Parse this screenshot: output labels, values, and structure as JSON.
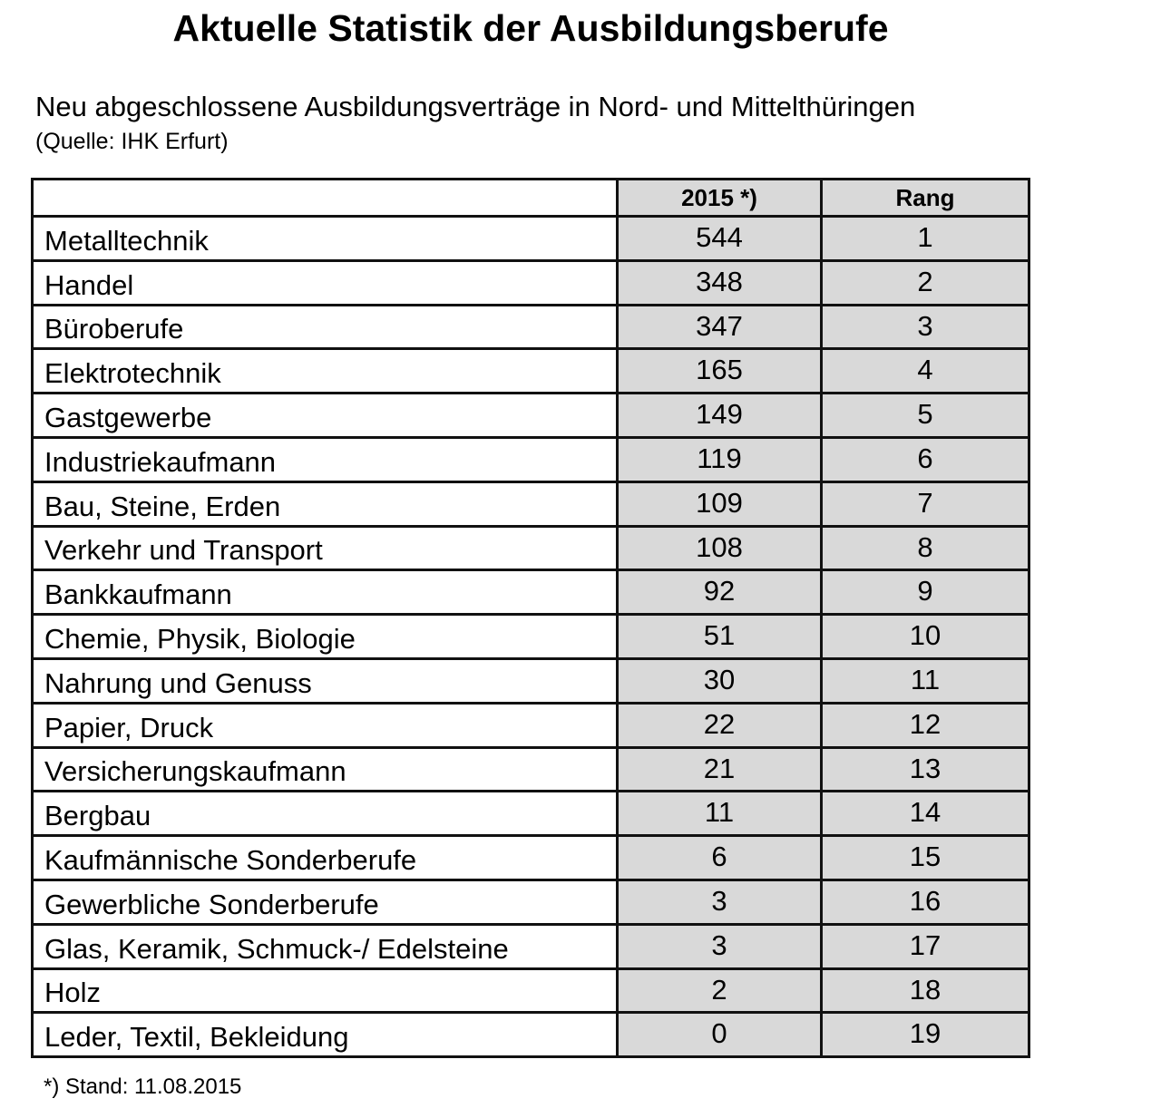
{
  "title": "Aktuelle Statistik der Ausbildungsberufe",
  "subtitle": "Neu abgeschlossene Ausbildungsverträge in Nord- und Mittelthüringen",
  "source": "(Quelle: IHK Erfurt)",
  "table": {
    "headers": [
      "",
      "2015 *)",
      "Rang"
    ],
    "rows": [
      [
        "Metalltechnik",
        "544",
        "1"
      ],
      [
        "Handel",
        "348",
        "2"
      ],
      [
        "Büroberufe",
        "347",
        "3"
      ],
      [
        "Elektrotechnik",
        "165",
        "4"
      ],
      [
        "Gastgewerbe",
        "149",
        "5"
      ],
      [
        "Industriekaufmann",
        "119",
        "6"
      ],
      [
        "Bau, Steine, Erden",
        "109",
        "7"
      ],
      [
        "Verkehr und Transport",
        "108",
        "8"
      ],
      [
        "Bankkaufmann",
        "92",
        "9"
      ],
      [
        "Chemie, Physik, Biologie",
        "51",
        "10"
      ],
      [
        "Nahrung und Genuss",
        "30",
        "11"
      ],
      [
        "Papier, Druck",
        "22",
        "12"
      ],
      [
        "Versicherungskaufmann",
        "21",
        "13"
      ],
      [
        "Bergbau",
        "11",
        "14"
      ],
      [
        "Kaufmännische Sonderberufe",
        "6",
        "15"
      ],
      [
        "Gewerbliche Sonderberufe",
        "3",
        "16"
      ],
      [
        "Glas, Keramik, Schmuck-/ Edelsteine",
        "3",
        "17"
      ],
      [
        "Holz",
        "2",
        "18"
      ],
      [
        "Leder, Textil, Bekleidung",
        "0",
        "19"
      ]
    ]
  },
  "footnote": "*) Stand: 11.08.2015",
  "colors": {
    "cell_shade": "#d9d9d9",
    "border": "#111111"
  }
}
